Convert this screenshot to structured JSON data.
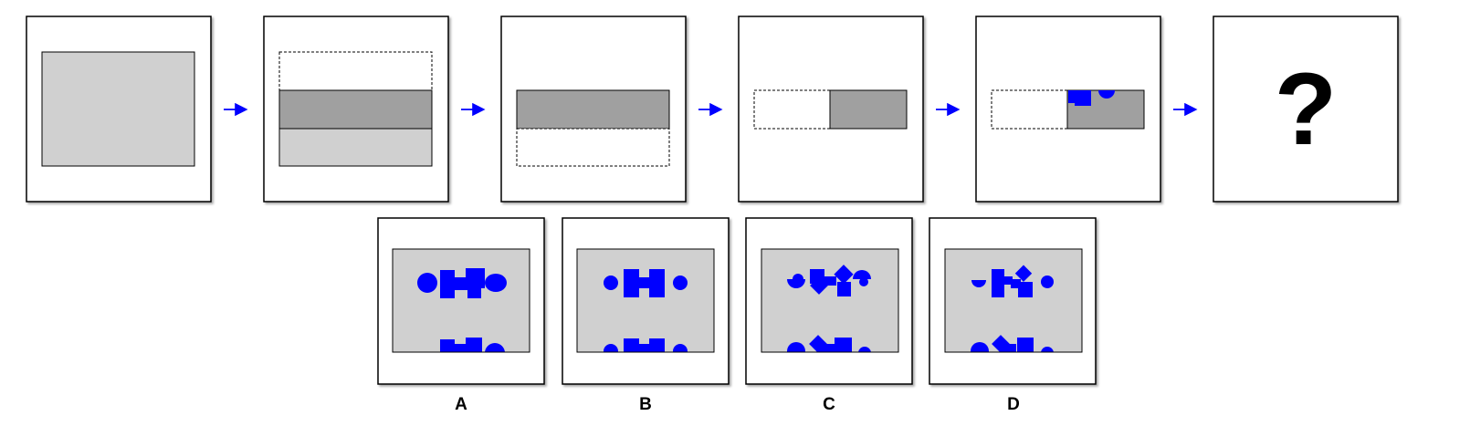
{
  "puzzle": {
    "question_mark": "?",
    "options": [
      {
        "label": "A"
      },
      {
        "label": "B"
      },
      {
        "label": "C"
      },
      {
        "label": "D"
      }
    ]
  },
  "colors": {
    "frame": "#000000",
    "light_gray": "#d0d0d0",
    "dark_gray": "#a0a0a0",
    "shape_blue": "#0000ff",
    "arrow_blue": "#0000ff"
  },
  "icons": [
    "right-arrow-icon"
  ]
}
